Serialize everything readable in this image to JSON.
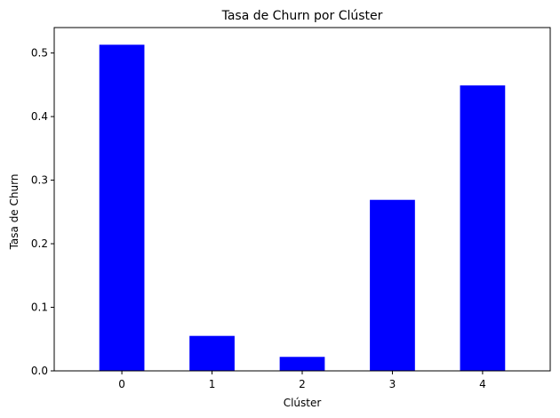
{
  "chart_data": {
    "type": "bar",
    "title": "Tasa de Churn por Clúster",
    "xlabel": "Clúster",
    "ylabel": "Tasa de Churn",
    "categories": [
      "0",
      "1",
      "2",
      "3",
      "4"
    ],
    "values": [
      0.513,
      0.055,
      0.022,
      0.269,
      0.449
    ],
    "ylim": [
      0,
      0.54
    ],
    "yticks": [
      "0.0",
      "0.1",
      "0.2",
      "0.3",
      "0.4",
      "0.5"
    ],
    "bar_color": "#0000ff",
    "grid": false,
    "legend": "none"
  }
}
